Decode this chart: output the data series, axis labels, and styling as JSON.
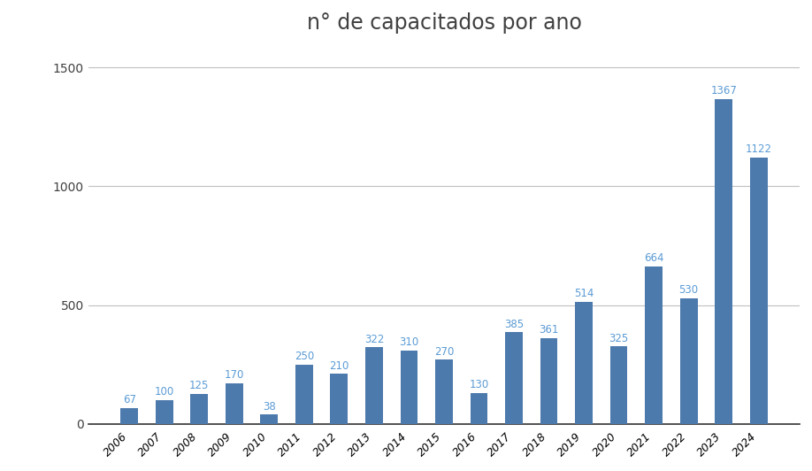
{
  "title": "n° de capacitados por ano",
  "years": [
    "2006",
    "2007",
    "2008",
    "2009",
    "2010",
    "2011",
    "2012",
    "2013",
    "2014",
    "2015",
    "2016",
    "2017",
    "2018",
    "2019",
    "2020",
    "2021",
    "2022",
    "2023",
    "2024"
  ],
  "values": [
    67,
    100,
    125,
    170,
    38,
    250,
    210,
    322,
    310,
    270,
    130,
    385,
    361,
    514,
    325,
    664,
    530,
    1367,
    1122
  ],
  "bar_color": "#4d7aad",
  "label_color": "#5b9bd5",
  "label_fontsize": 8.5,
  "title_fontsize": 17,
  "title_color": "#404040",
  "tick_label_color": "#000000",
  "tick_label_color_y": "#404040",
  "grid_color": "#c0c0c0",
  "background_color": "#ffffff",
  "ylim": [
    0,
    1600
  ],
  "yticks": [
    0,
    500,
    1000,
    1500
  ],
  "bar_width": 0.5
}
